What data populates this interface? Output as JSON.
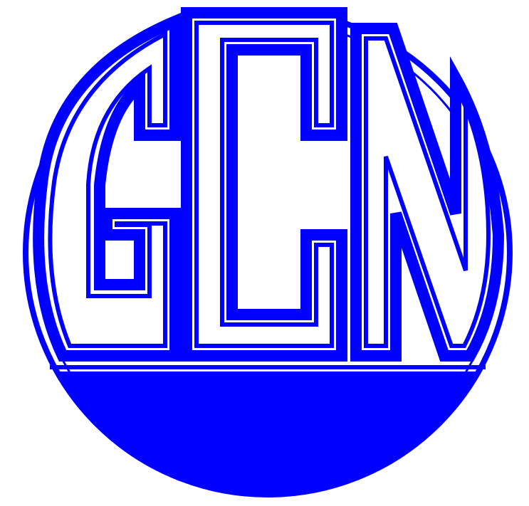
{
  "logo": {
    "text": "GCN",
    "colors": {
      "primary": "#0000ff",
      "background": "#ffffff"
    }
  }
}
